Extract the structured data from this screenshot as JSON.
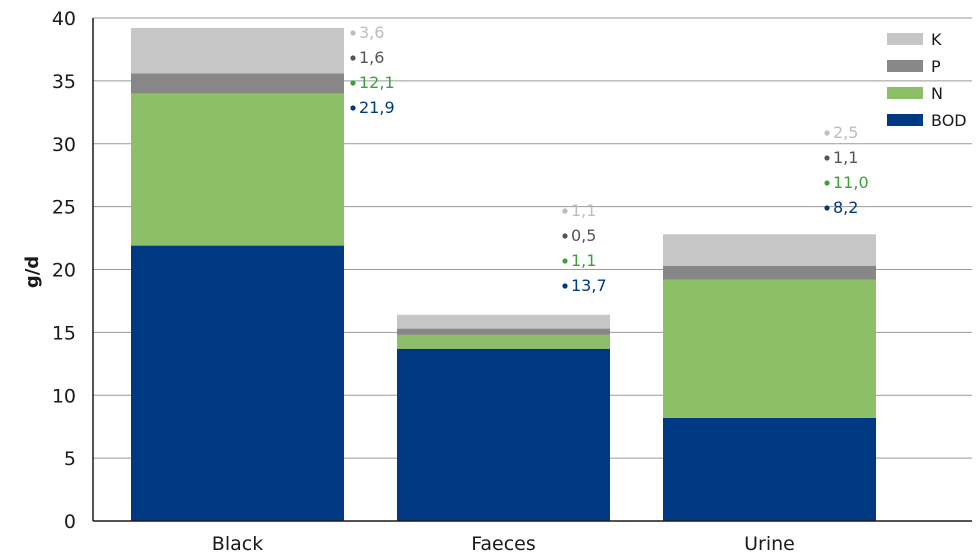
{
  "chart_data": {
    "type": "bar",
    "stacked": true,
    "categories": [
      "Black",
      "Faeces",
      "Urine"
    ],
    "ylabel": "g/d",
    "ylim": [
      0,
      40
    ],
    "yticks": [
      0,
      5,
      10,
      15,
      20,
      25,
      30,
      35,
      40
    ],
    "grid": true,
    "legend_position": "top-right",
    "series": [
      {
        "name": "BOD",
        "color": "#003882",
        "label_color": "#003882",
        "values": [
          21.9,
          13.7,
          8.2
        ],
        "labels": [
          "21,9",
          "13,7",
          "8,2"
        ]
      },
      {
        "name": "N",
        "color": "#8dbf69",
        "label_color": "#3aa336",
        "values": [
          12.1,
          1.1,
          11.0
        ],
        "labels": [
          "12,1",
          "1,1",
          "11,0"
        ]
      },
      {
        "name": "P",
        "color": "#878787",
        "label_color": "#555555",
        "values": [
          1.6,
          0.5,
          1.1
        ],
        "labels": [
          "1,6",
          "0,5",
          "1,1"
        ]
      },
      {
        "name": "K",
        "color": "#c6c6c6",
        "label_color": "#bdbdbd",
        "values": [
          3.6,
          1.1,
          2.5
        ],
        "labels": [
          "3,6",
          "1,1",
          "2,5"
        ]
      }
    ]
  }
}
